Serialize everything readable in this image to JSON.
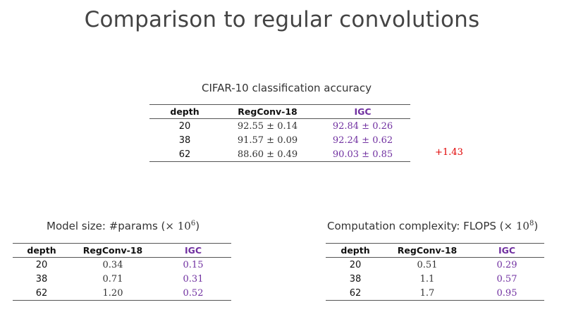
{
  "title": "Comparison to regular convolutions",
  "accuracy": {
    "caption": "CIFAR-10 classification accuracy",
    "headers": [
      "depth",
      "RegConv-18",
      "IGC"
    ],
    "rows": [
      {
        "depth": "20",
        "regconv": "92.55 ± 0.14",
        "igc": "92.84 ± 0.26"
      },
      {
        "depth": "38",
        "regconv": "91.57 ± 0.09",
        "igc": "92.24 ± 0.62"
      },
      {
        "depth": "62",
        "regconv": "88.60 ± 0.49",
        "igc": "90.03 ± 0.85"
      }
    ],
    "gain": "+1.43"
  },
  "model_size": {
    "caption_prefix": "Model size: #params (",
    "caption_times": "× 10",
    "caption_exp": "6",
    "caption_suffix": ")",
    "headers": [
      "depth",
      "RegConv-18",
      "IGC"
    ],
    "rows": [
      {
        "depth": "20",
        "regconv": "0.34",
        "igc": "0.15"
      },
      {
        "depth": "38",
        "regconv": "0.71",
        "igc": "0.31"
      },
      {
        "depth": "62",
        "regconv": "1.20",
        "igc": "0.52"
      }
    ]
  },
  "complexity": {
    "caption_prefix": "Computation complexity: FLOPS (",
    "caption_times": "× 10",
    "caption_exp": "8",
    "caption_suffix": ")",
    "headers": [
      "depth",
      "RegConv-18",
      "IGC"
    ],
    "rows": [
      {
        "depth": "20",
        "regconv": "0.51",
        "igc": "0.29"
      },
      {
        "depth": "38",
        "regconv": "1.1",
        "igc": "0.57"
      },
      {
        "depth": "62",
        "regconv": "1.7",
        "igc": "0.95"
      }
    ]
  },
  "colors": {
    "igc": "#7030a0",
    "gain": "#e00000"
  }
}
